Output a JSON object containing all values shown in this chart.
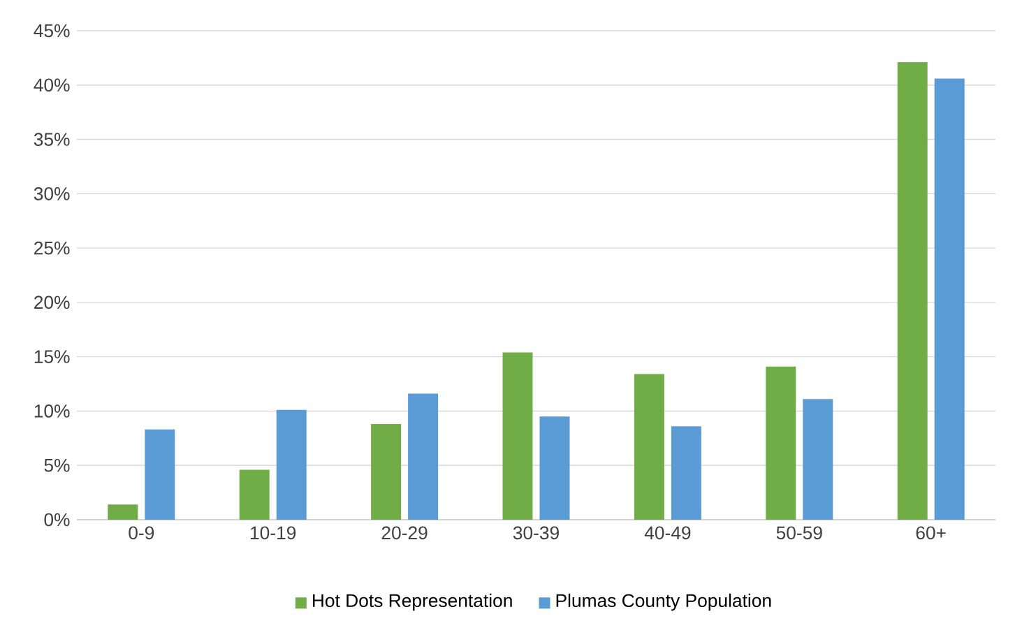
{
  "chart_data": {
    "type": "bar",
    "categories": [
      "0-9",
      "10-19",
      "20-29",
      "30-39",
      "40-49",
      "50-59",
      "60+"
    ],
    "series": [
      {
        "name": "Hot Dots Representation",
        "color": "#70ad47",
        "values": [
          1.4,
          4.6,
          8.8,
          15.4,
          13.4,
          14.1,
          42.1
        ]
      },
      {
        "name": "Plumas County Population",
        "color": "#5b9bd5",
        "values": [
          8.3,
          10.1,
          11.6,
          9.5,
          8.6,
          11.1,
          40.6
        ]
      }
    ],
    "ylim": [
      0,
      45
    ],
    "yticks": [
      {
        "value": 0,
        "label": "0%"
      },
      {
        "value": 5,
        "label": "5%"
      },
      {
        "value": 10,
        "label": "10%"
      },
      {
        "value": 15,
        "label": "15%"
      },
      {
        "value": 20,
        "label": "20%"
      },
      {
        "value": 25,
        "label": "25%"
      },
      {
        "value": 30,
        "label": "30%"
      },
      {
        "value": 35,
        "label": "35%"
      },
      {
        "value": 40,
        "label": "40%"
      },
      {
        "value": 45,
        "label": "45%"
      }
    ],
    "grid": "y",
    "legend": "bottom"
  }
}
